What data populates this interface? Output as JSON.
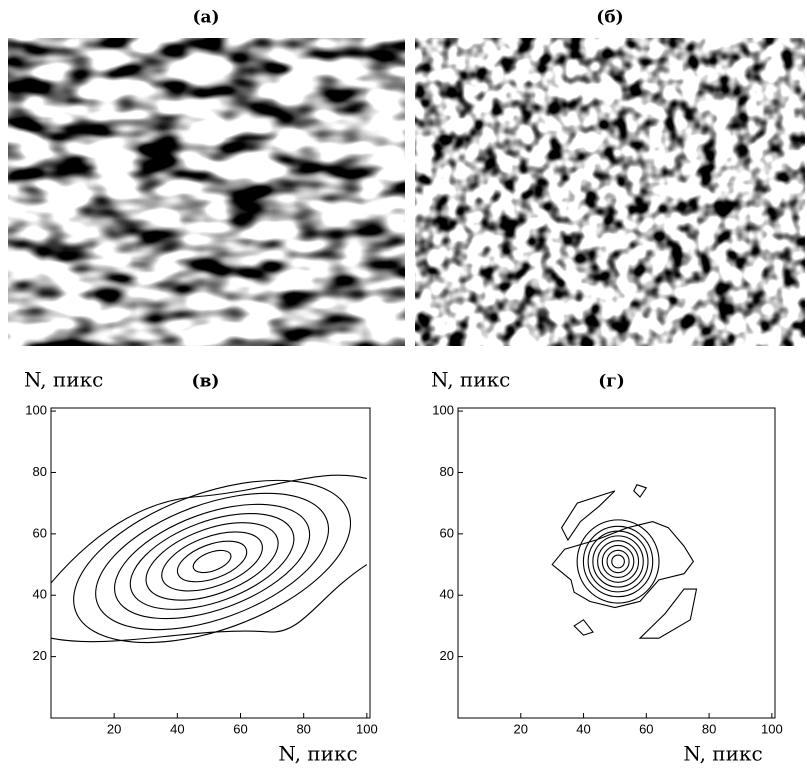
{
  "images": [
    {
      "label": "(а)"
    },
    {
      "label": "(б)"
    }
  ],
  "chart_data": [
    {
      "type": "contour",
      "title": "(в)",
      "xlabel": "N, пикс",
      "ylabel": "N, пикс",
      "xlim": [
        0,
        101
      ],
      "ylim": [
        0,
        101
      ],
      "xticks": [
        20,
        40,
        60,
        80,
        100
      ],
      "yticks": [
        20,
        40,
        60,
        80,
        100
      ]
    },
    {
      "type": "contour",
      "title": "(г)",
      "xlabel": "N, пикс",
      "ylabel": "N, пикс",
      "xlim": [
        0,
        101
      ],
      "ylim": [
        0,
        101
      ],
      "xticks": [
        20,
        40,
        60,
        80,
        100
      ],
      "yticks": [
        20,
        40,
        60,
        80,
        100
      ]
    }
  ]
}
